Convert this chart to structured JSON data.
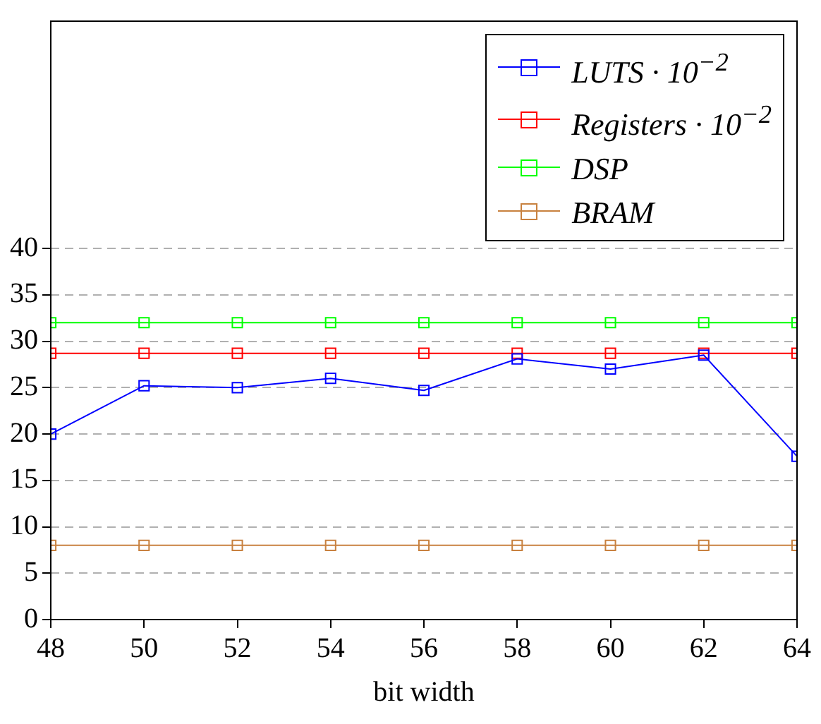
{
  "chart_data": {
    "type": "line",
    "xlabel": "bit width",
    "x": [
      48,
      50,
      52,
      54,
      56,
      58,
      60,
      62,
      64
    ],
    "series": [
      {
        "name": "LUTS · 10$^{−2}$",
        "color": "#0000ff",
        "values": [
          20,
          25.2,
          25,
          26,
          24.7,
          28.1,
          27,
          28.5,
          17.6
        ]
      },
      {
        "name": "Registers · 10$^{−2}$",
        "color": "#ff0000",
        "values": [
          28.7,
          28.7,
          28.7,
          28.7,
          28.7,
          28.7,
          28.7,
          28.7,
          28.7
        ]
      },
      {
        "name": "DSP",
        "color": "#00ff00",
        "values": [
          32,
          32,
          32,
          32,
          32,
          32,
          32,
          32,
          32
        ]
      },
      {
        "name": "BRAM",
        "color": "#c8813f",
        "values": [
          8,
          8,
          8,
          8,
          8,
          8,
          8,
          8,
          8
        ]
      }
    ],
    "xlim": [
      48,
      64
    ],
    "xticks": [
      48,
      50,
      52,
      54,
      56,
      58,
      60,
      62,
      64
    ],
    "ylim": [
      0,
      64.5
    ],
    "yticks": [
      0,
      5,
      10,
      15,
      20,
      25,
      30,
      35,
      40
    ],
    "grid": "y",
    "legend": "top right",
    "marker": "square",
    "line_style": "solid"
  }
}
